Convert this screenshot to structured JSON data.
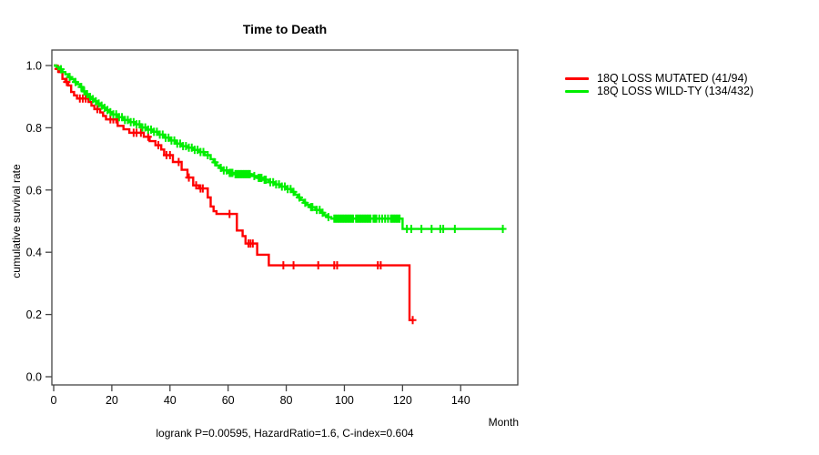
{
  "chart_data": {
    "type": "line",
    "subtype": "kaplan_meier_step",
    "title": "Time to Death",
    "xlabel": "Month",
    "ylabel": "cumulative survival rate",
    "annotation": "logrank P=0.00595, HazardRatio=1.6, C-index=0.604",
    "xlim": [
      0,
      160
    ],
    "ylim": [
      0.0,
      1.0
    ],
    "x_ticks": [
      0,
      20,
      40,
      60,
      80,
      100,
      120,
      140
    ],
    "y_ticks": [
      "0.0",
      "0.2",
      "0.4",
      "0.6",
      "0.8",
      "1.0"
    ],
    "grid": false,
    "legend_position": "right-outside",
    "axis_color": "#444444",
    "series": [
      {
        "name": "18Q LOSS MUTATED (41/94)",
        "color": "#ff0000",
        "end_month": 123.5,
        "steps": [
          [
            0,
            1.0
          ],
          [
            1,
            0.989
          ],
          [
            2,
            0.979
          ],
          [
            3,
            0.957
          ],
          [
            4,
            0.947
          ],
          [
            5,
            0.936
          ],
          [
            6,
            0.915
          ],
          [
            7,
            0.904
          ],
          [
            8,
            0.894
          ],
          [
            12,
            0.883
          ],
          [
            13,
            0.871
          ],
          [
            14,
            0.86
          ],
          [
            16,
            0.849
          ],
          [
            17,
            0.838
          ],
          [
            18,
            0.827
          ],
          [
            22,
            0.806
          ],
          [
            24,
            0.795
          ],
          [
            26,
            0.784
          ],
          [
            31,
            0.771
          ],
          [
            33,
            0.757
          ],
          [
            35,
            0.744
          ],
          [
            37,
            0.73
          ],
          [
            38,
            0.712
          ],
          [
            41,
            0.69
          ],
          [
            44,
            0.665
          ],
          [
            46,
            0.64
          ],
          [
            48,
            0.615
          ],
          [
            50,
            0.605
          ],
          [
            53,
            0.576
          ],
          [
            54,
            0.547
          ],
          [
            55,
            0.532
          ],
          [
            56,
            0.523
          ],
          [
            63,
            0.47
          ],
          [
            65,
            0.452
          ],
          [
            66,
            0.428
          ],
          [
            70,
            0.392
          ],
          [
            74,
            0.358
          ],
          [
            122.4,
            0.182
          ]
        ],
        "censors": [
          1.5,
          4.5,
          9,
          10,
          11,
          15,
          19.5,
          20.5,
          21.5,
          27.5,
          28.5,
          30,
          32.5,
          36,
          38.8,
          40,
          43,
          46.5,
          49,
          50.5,
          51.3,
          60.5,
          67,
          67.7,
          68.5,
          79,
          82.5,
          91,
          96.5,
          97.5,
          111.5,
          112.5,
          123.5
        ]
      },
      {
        "name": "18Q LOSS WILD-TY (134/432)",
        "color": "#00ee00",
        "end_month": 154.6,
        "steps": [
          [
            0,
            1.0
          ],
          [
            1,
            0.995
          ],
          [
            2,
            0.988
          ],
          [
            3,
            0.979
          ],
          [
            4,
            0.972
          ],
          [
            5,
            0.963
          ],
          [
            6,
            0.956
          ],
          [
            7,
            0.947
          ],
          [
            8,
            0.94
          ],
          [
            9,
            0.931
          ],
          [
            10,
            0.917
          ],
          [
            11,
            0.908
          ],
          [
            12,
            0.899
          ],
          [
            13,
            0.892
          ],
          [
            14,
            0.885
          ],
          [
            15,
            0.878
          ],
          [
            16,
            0.871
          ],
          [
            17,
            0.864
          ],
          [
            18,
            0.857
          ],
          [
            19,
            0.85
          ],
          [
            20,
            0.843
          ],
          [
            22,
            0.834
          ],
          [
            24,
            0.825
          ],
          [
            26,
            0.818
          ],
          [
            28,
            0.811
          ],
          [
            30,
            0.801
          ],
          [
            32,
            0.794
          ],
          [
            34,
            0.787
          ],
          [
            36,
            0.778
          ],
          [
            38,
            0.768
          ],
          [
            40,
            0.759
          ],
          [
            42,
            0.749
          ],
          [
            44,
            0.741
          ],
          [
            46,
            0.736
          ],
          [
            48,
            0.729
          ],
          [
            50,
            0.722
          ],
          [
            52,
            0.712
          ],
          [
            54,
            0.699
          ],
          [
            55,
            0.689
          ],
          [
            56,
            0.679
          ],
          [
            57,
            0.671
          ],
          [
            58,
            0.663
          ],
          [
            60,
            0.655
          ],
          [
            62,
            0.651
          ],
          [
            68,
            0.645
          ],
          [
            70,
            0.639
          ],
          [
            72,
            0.633
          ],
          [
            74,
            0.625
          ],
          [
            76,
            0.618
          ],
          [
            78,
            0.611
          ],
          [
            80,
            0.603
          ],
          [
            82,
            0.594
          ],
          [
            83,
            0.585
          ],
          [
            84,
            0.576
          ],
          [
            85,
            0.568
          ],
          [
            86,
            0.559
          ],
          [
            87,
            0.552
          ],
          [
            88,
            0.545
          ],
          [
            90,
            0.536
          ],
          [
            92,
            0.527
          ],
          [
            93,
            0.519
          ],
          [
            94,
            0.513
          ],
          [
            95.5,
            0.508
          ],
          [
            120,
            0.475
          ]
        ],
        "censors": [
          2.5,
          5.5,
          7.5,
          9.5,
          10.5,
          11.5,
          12.5,
          13.5,
          14.5,
          15.5,
          16.5,
          17.5,
          18.5,
          19.5,
          20.5,
          21.5,
          22.5,
          23.5,
          24.5,
          25.5,
          26.5,
          27.5,
          28.5,
          29.5,
          30.5,
          31.5,
          32.5,
          33.5,
          34.5,
          35.5,
          36.5,
          37.5,
          38.5,
          39.5,
          40.5,
          41.5,
          42.5,
          43.5,
          44.5,
          45.5,
          46.5,
          47.5,
          48.5,
          49.5,
          50.5,
          51.5,
          53,
          55.5,
          57.5,
          58.5,
          59.5,
          60.5,
          61,
          61.5,
          62.5,
          63,
          63.5,
          64,
          64.5,
          65,
          65.5,
          66,
          66.5,
          67,
          67.5,
          69,
          70.5,
          71,
          71.5,
          72.5,
          73,
          74.5,
          75.5,
          76.5,
          77.5,
          78.5,
          79.5,
          80.5,
          81.5,
          82.5,
          84.5,
          86.5,
          88.5,
          89,
          90.5,
          91.5,
          92.5,
          94.5,
          96.5,
          97,
          97.5,
          98,
          98.5,
          99,
          99.5,
          100,
          100.5,
          101,
          101.5,
          102,
          102.5,
          103,
          104,
          104.5,
          105,
          105.5,
          106,
          106.5,
          107,
          107.5,
          108,
          108.5,
          109,
          110,
          110.5,
          111,
          112,
          113,
          114,
          115,
          116,
          116.5,
          117,
          117.5,
          118,
          118.5,
          119,
          121.5,
          123,
          126.5,
          130,
          133,
          134,
          138,
          154.5
        ]
      }
    ]
  }
}
